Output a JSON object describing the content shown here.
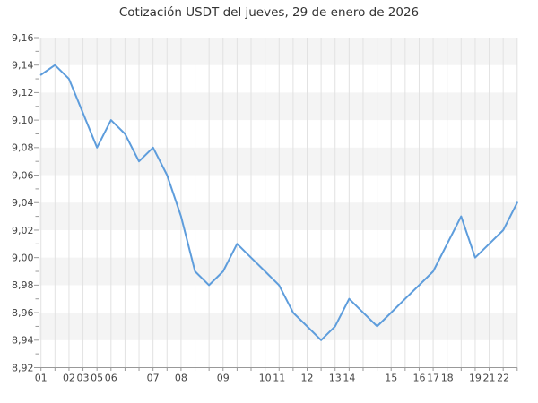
{
  "chart_data": {
    "type": "line",
    "title": "Cotización USDT del jueves, 29 de enero de 2026",
    "x_labels": [
      "01",
      "",
      "02",
      "03",
      "05",
      "06",
      "",
      "",
      "07",
      "",
      "08",
      "",
      "",
      "09",
      "",
      "",
      "10",
      "11",
      "",
      "12",
      "",
      "13",
      "14",
      "",
      "",
      "15",
      "",
      "16",
      "17",
      "18",
      "",
      "19",
      "21",
      "22",
      ""
    ],
    "values": [
      9.133,
      9.14,
      9.13,
      9.105,
      9.08,
      9.1,
      9.09,
      9.07,
      9.08,
      9.06,
      9.03,
      8.99,
      8.98,
      8.99,
      9.01,
      9.0,
      8.99,
      8.98,
      8.96,
      8.95,
      8.94,
      8.95,
      8.97,
      8.96,
      8.95,
      8.96,
      8.97,
      8.98,
      8.99,
      9.01,
      9.03,
      9.0,
      9.01,
      9.02,
      9.04
    ],
    "y_tick_labels": [
      "9,16",
      "9,14",
      "9,12",
      "9,10",
      "9,08",
      "9,06",
      "9,04",
      "9,02",
      "9,00",
      "8,98",
      "8,96",
      "8,94",
      "8,92"
    ],
    "ylim": [
      8.92,
      9.16
    ],
    "y_major_step": 0.02,
    "y_minor_step": 0.01,
    "grid": "vertical",
    "legend": "none",
    "colors": {
      "line": "#5e9ddc",
      "band": "#f4f4f4",
      "grid": "#e2e2e2",
      "axis": "#999999",
      "tick_label": "#444444",
      "title": "#333333",
      "background": "#ffffff"
    }
  }
}
